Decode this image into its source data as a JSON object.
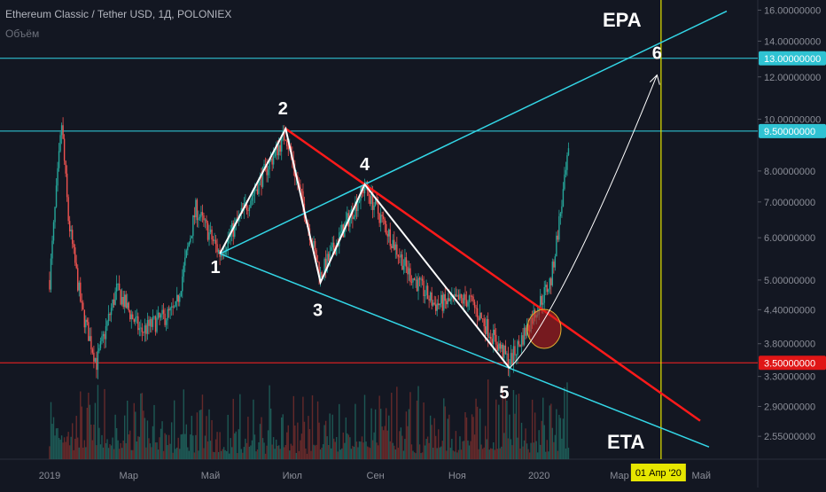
{
  "header": {
    "title": "Ethereum Classic / Tether USD, 1Д, POLONIEX",
    "volume_label": "Объём"
  },
  "colors": {
    "background": "#131722",
    "up": "#26a69a",
    "down": "#ef5350",
    "channel": "#33d6e6",
    "resistance": "#ff1a1a",
    "support": "#ff2222",
    "date_marker": "#e6e600",
    "wave": "#ffffff"
  },
  "chart_data": {
    "type": "candlestick",
    "y_scale": "log",
    "ylim": [
      2.4,
      16.4
    ],
    "price_ticks": [
      "16.00000000",
      "14.00000000",
      "12.00000000",
      "10.00000000",
      "8.00000000",
      "7.00000000",
      "6.00000000",
      "5.00000000",
      "4.40000000",
      "3.80000000",
      "3.30000000",
      "2.90000000",
      "2.55000000"
    ],
    "highlighted_levels": [
      {
        "label": "13.00000000",
        "value": 13.0,
        "color": "#33d6e6"
      },
      {
        "label": "9.50000000",
        "value": 9.5,
        "color": "#33d6e6"
      },
      {
        "label": "3.50000000",
        "value": 3.5,
        "color": "#ff2222"
      }
    ],
    "time_ticks": [
      "2019",
      "Мар",
      "Май",
      "Июл",
      "Сен",
      "Ноя",
      "2020",
      "Мар",
      "Май"
    ],
    "date_marker_label": "01 Апр '20",
    "wave_labels": [
      "1",
      "2",
      "3",
      "4",
      "5",
      "6"
    ],
    "wave_points": [
      {
        "label": "1",
        "date": "2019-05-08",
        "price": 5.6
      },
      {
        "label": "2",
        "date": "2019-06-26",
        "price": 9.6
      },
      {
        "label": "3",
        "date": "2019-07-22",
        "price": 4.95
      },
      {
        "label": "4",
        "date": "2019-08-24",
        "price": 7.55
      },
      {
        "label": "5",
        "date": "2019-12-10",
        "price": 3.42
      },
      {
        "label": "6",
        "date": "2020-03-29",
        "price": 12.1
      }
    ],
    "annotations": [
      "EPA",
      "ETA"
    ],
    "overview": [
      {
        "date": "2019-01-01",
        "price": 5.0
      },
      {
        "date": "2019-01-10",
        "price": 9.8
      },
      {
        "date": "2019-01-15",
        "price": 6.5
      },
      {
        "date": "2019-01-25",
        "price": 4.4
      },
      {
        "date": "2019-02-05",
        "price": 3.5
      },
      {
        "date": "2019-02-20",
        "price": 4.8
      },
      {
        "date": "2019-03-10",
        "price": 4.0
      },
      {
        "date": "2019-04-05",
        "price": 4.4
      },
      {
        "date": "2019-04-20",
        "price": 6.8
      },
      {
        "date": "2019-05-08",
        "price": 5.6
      },
      {
        "date": "2019-06-26",
        "price": 9.4
      },
      {
        "date": "2019-07-22",
        "price": 5.1
      },
      {
        "date": "2019-08-24",
        "price": 7.5
      },
      {
        "date": "2019-09-25",
        "price": 5.2
      },
      {
        "date": "2019-10-15",
        "price": 4.5
      },
      {
        "date": "2019-11-10",
        "price": 4.6
      },
      {
        "date": "2019-12-10",
        "price": 3.5
      },
      {
        "date": "2020-01-10",
        "price": 5.0
      },
      {
        "date": "2020-01-23",
        "price": 8.6
      }
    ]
  }
}
